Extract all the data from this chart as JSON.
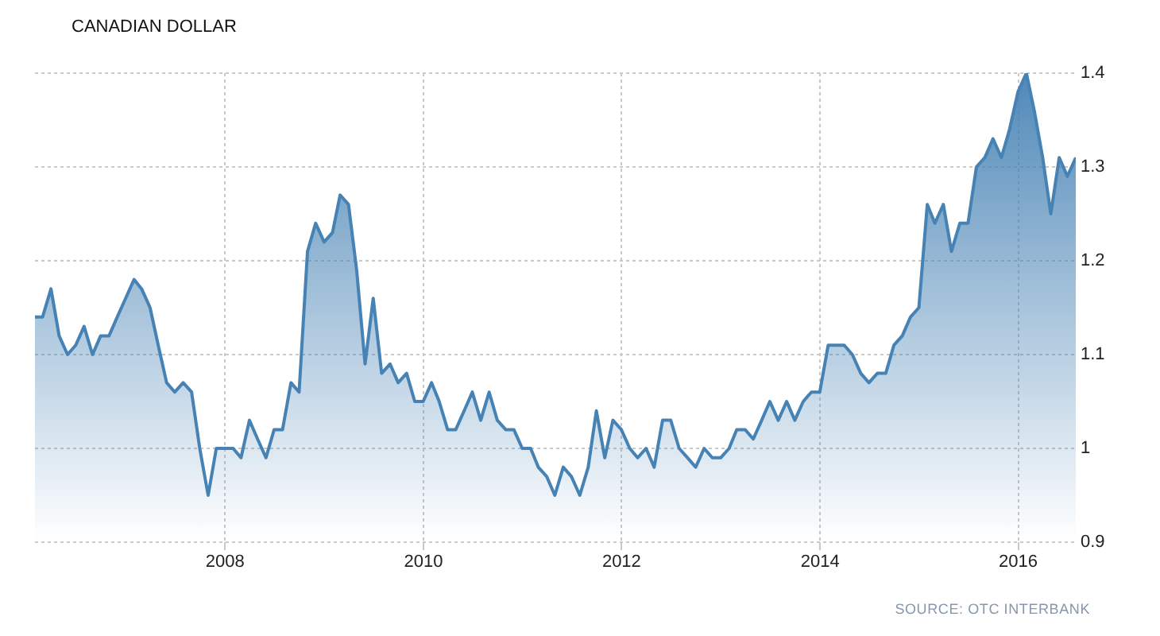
{
  "chart_data": {
    "type": "area",
    "title": "CANADIAN DOLLAR",
    "annotations": [
      "SOURCE: OTC INTERBANK"
    ],
    "x": [
      "2006-01-31",
      "2006-02-28",
      "2006-03-31",
      "2006-04-30",
      "2006-05-31",
      "2006-06-30",
      "2006-07-31",
      "2006-08-31",
      "2006-09-30",
      "2006-10-31",
      "2006-11-30",
      "2006-12-31",
      "2007-01-31",
      "2007-02-28",
      "2007-03-31",
      "2007-04-30",
      "2007-05-31",
      "2007-06-30",
      "2007-07-31",
      "2007-08-31",
      "2007-09-30",
      "2007-10-31",
      "2007-11-30",
      "2007-12-31",
      "2008-01-31",
      "2008-02-29",
      "2008-03-31",
      "2008-04-30",
      "2008-05-31",
      "2008-06-30",
      "2008-07-31",
      "2008-08-31",
      "2008-09-30",
      "2008-10-31",
      "2008-11-30",
      "2008-12-31",
      "2009-01-31",
      "2009-02-28",
      "2009-03-31",
      "2009-04-30",
      "2009-05-31",
      "2009-06-30",
      "2009-07-31",
      "2009-08-31",
      "2009-09-30",
      "2009-10-31",
      "2009-11-30",
      "2009-12-31",
      "2010-01-31",
      "2010-02-28",
      "2010-03-31",
      "2010-04-30",
      "2010-05-31",
      "2010-06-30",
      "2010-07-31",
      "2010-08-31",
      "2010-09-30",
      "2010-10-31",
      "2010-11-30",
      "2010-12-31",
      "2011-01-31",
      "2011-02-28",
      "2011-03-31",
      "2011-04-30",
      "2011-05-31",
      "2011-06-30",
      "2011-07-31",
      "2011-08-31",
      "2011-09-30",
      "2011-10-31",
      "2011-11-30",
      "2011-12-31",
      "2012-01-31",
      "2012-02-29",
      "2012-03-31",
      "2012-04-30",
      "2012-05-31",
      "2012-06-30",
      "2012-07-31",
      "2012-08-31",
      "2012-09-30",
      "2012-10-31",
      "2012-11-30",
      "2012-12-31",
      "2013-01-31",
      "2013-02-28",
      "2013-03-31",
      "2013-04-30",
      "2013-05-31",
      "2013-06-30",
      "2013-07-31",
      "2013-08-31",
      "2013-09-30",
      "2013-10-31",
      "2013-11-30",
      "2013-12-31",
      "2014-01-31",
      "2014-02-28",
      "2014-03-31",
      "2014-04-30",
      "2014-05-31",
      "2014-06-30",
      "2014-07-31",
      "2014-08-31",
      "2014-09-30",
      "2014-10-31",
      "2014-11-30",
      "2014-12-31",
      "2015-01-31",
      "2015-02-28",
      "2015-03-31",
      "2015-04-30",
      "2015-05-31",
      "2015-06-30",
      "2015-07-31",
      "2015-08-31",
      "2015-09-30",
      "2015-10-31",
      "2015-11-30",
      "2015-12-31",
      "2016-01-31",
      "2016-02-29",
      "2016-03-31",
      "2016-04-30",
      "2016-05-31",
      "2016-06-30",
      "2016-07-31"
    ],
    "values": [
      1.14,
      1.14,
      1.17,
      1.12,
      1.1,
      1.11,
      1.13,
      1.1,
      1.12,
      1.12,
      1.14,
      1.16,
      1.18,
      1.17,
      1.15,
      1.11,
      1.07,
      1.06,
      1.07,
      1.06,
      1.0,
      0.95,
      1.0,
      1.0,
      1.0,
      0.99,
      1.03,
      1.01,
      0.99,
      1.02,
      1.02,
      1.07,
      1.06,
      1.21,
      1.24,
      1.22,
      1.23,
      1.27,
      1.26,
      1.19,
      1.09,
      1.16,
      1.08,
      1.09,
      1.07,
      1.08,
      1.05,
      1.05,
      1.07,
      1.05,
      1.02,
      1.02,
      1.04,
      1.06,
      1.03,
      1.06,
      1.03,
      1.02,
      1.02,
      1.0,
      1.0,
      0.98,
      0.97,
      0.95,
      0.98,
      0.97,
      0.95,
      0.98,
      1.04,
      0.99,
      1.03,
      1.02,
      1.0,
      0.99,
      1.0,
      0.98,
      1.03,
      1.03,
      1.0,
      0.99,
      0.98,
      1.0,
      0.99,
      0.99,
      1.0,
      1.02,
      1.02,
      1.01,
      1.03,
      1.05,
      1.03,
      1.05,
      1.03,
      1.05,
      1.06,
      1.06,
      1.11,
      1.11,
      1.11,
      1.1,
      1.08,
      1.07,
      1.08,
      1.08,
      1.11,
      1.12,
      1.14,
      1.15,
      1.26,
      1.24,
      1.26,
      1.21,
      1.24,
      1.24,
      1.3,
      1.31,
      1.33,
      1.31,
      1.34,
      1.38,
      1.4,
      1.36,
      1.31,
      1.25,
      1.31,
      1.29,
      1.31
    ],
    "color": "#4682b4",
    "xlim": [
      "2006-01-31",
      "2016-07-31"
    ],
    "xticks": [
      "2008",
      "2010",
      "2012",
      "2014",
      "2016"
    ],
    "ylim": [
      0.9,
      1.4
    ],
    "yticks": [
      0.9,
      1,
      1.1,
      1.2,
      1.3,
      1.4
    ],
    "grid": true
  }
}
